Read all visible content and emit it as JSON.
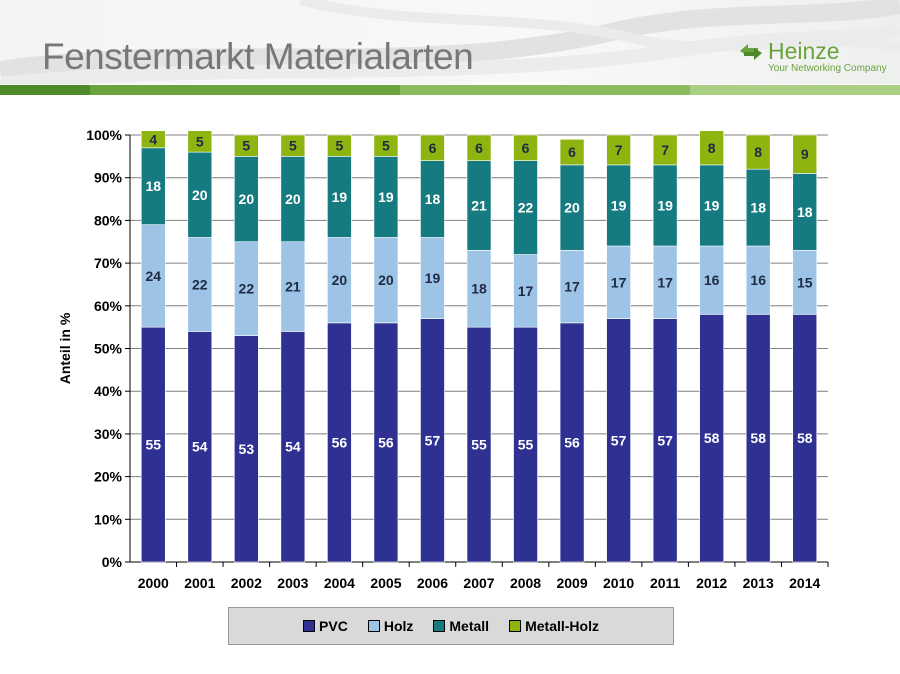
{
  "slide": {
    "title": "Fenstermarkt Materialarten",
    "logo_name": "Heinze",
    "logo_tagline": "Your Networking Company",
    "band_colors": [
      "#4f8a2a",
      "#6aa33c",
      "#8cbc5f",
      "#a9cf85"
    ]
  },
  "chart_data": {
    "type": "bar",
    "stacked": true,
    "percent": true,
    "ylabel": "Anteil in %",
    "ylim": [
      0,
      100
    ],
    "yticks": [
      "0%",
      "10%",
      "20%",
      "30%",
      "40%",
      "50%",
      "60%",
      "70%",
      "80%",
      "90%",
      "100%"
    ],
    "categories": [
      "2000",
      "2001",
      "2002",
      "2003",
      "2004",
      "2005",
      "2006",
      "2007",
      "2008",
      "2009",
      "2010",
      "2011",
      "2012",
      "2013",
      "2014"
    ],
    "series": [
      {
        "name": "PVC",
        "color": "#2e3192",
        "label_color": "#ffffff",
        "values": [
          55,
          54,
          53,
          54,
          56,
          56,
          57,
          55,
          55,
          56,
          57,
          57,
          58,
          58,
          58
        ]
      },
      {
        "name": "Holz",
        "color": "#9dc3e6",
        "label_color": "#1f2a44",
        "values": [
          24,
          22,
          22,
          21,
          20,
          20,
          19,
          18,
          17,
          17,
          17,
          17,
          16,
          16,
          15
        ]
      },
      {
        "name": "Metall",
        "color": "#167b80",
        "label_color": "#ffffff",
        "values": [
          18,
          20,
          20,
          20,
          19,
          19,
          18,
          21,
          22,
          20,
          19,
          19,
          19,
          18,
          18
        ]
      },
      {
        "name": "Metall-Holz",
        "color": "#8db40f",
        "label_color": "#1f2a44",
        "values": [
          4,
          5,
          5,
          5,
          5,
          5,
          6,
          6,
          6,
          6,
          7,
          7,
          8,
          8,
          9
        ]
      }
    ],
    "grid": true,
    "legend_position": "bottom"
  }
}
